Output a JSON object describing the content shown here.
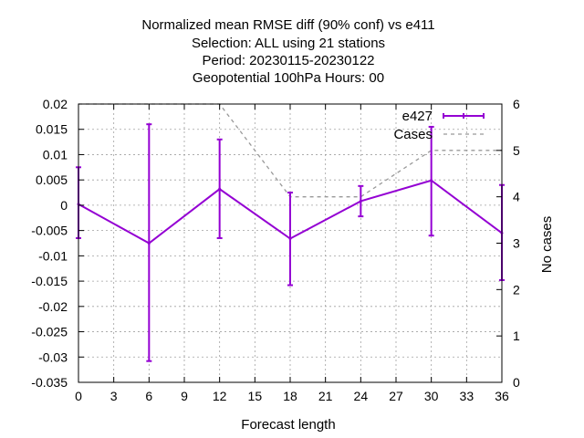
{
  "chart_data": {
    "type": "line",
    "title_lines": [
      "Normalized mean RMSE diff (90% conf) vs e411",
      "Selection: ALL using     21 stations",
      "Period: 20230115-20230122",
      "Geopotential 100hPa   Hours:  00"
    ],
    "xlabel": "Forecast length",
    "ylabel": "",
    "y2label": "No cases",
    "xlim": [
      0,
      36
    ],
    "ylim": [
      -0.035,
      0.02
    ],
    "y2lim": [
      0,
      6
    ],
    "x_ticks": [
      "0",
      "3",
      "6",
      "9",
      "12",
      "15",
      "18",
      "21",
      "24",
      "27",
      "30",
      "33",
      "36"
    ],
    "y_ticks": [
      "0.02",
      "0.015",
      "0.01",
      "0.005",
      "0",
      "-0.005",
      "-0.01",
      "-0.015",
      "-0.02",
      "-0.025",
      "-0.03",
      "-0.035"
    ],
    "y2_ticks": [
      "6",
      "5",
      "4",
      "3",
      "2",
      "1",
      "0"
    ],
    "grid": true,
    "legend_position": "top-right",
    "series": [
      {
        "name": "e427",
        "color": "#9400d3",
        "style": "line-with-errorbars",
        "axis": "left",
        "x": [
          0,
          6,
          12,
          18,
          24,
          30,
          36
        ],
        "y": [
          0.0002,
          -0.0075,
          0.0032,
          -0.0066,
          0.0008,
          0.0049,
          -0.0055
        ],
        "err_low": [
          -0.0065,
          -0.0308,
          -0.0065,
          -0.0158,
          -0.0022,
          -0.006,
          -0.0148
        ],
        "err_high": [
          0.0075,
          0.016,
          0.013,
          0.0025,
          0.0038,
          0.0155,
          0.004
        ]
      },
      {
        "name": "Cases",
        "color": "#999999",
        "style": "dashed-step",
        "axis": "right",
        "x": [
          0,
          6,
          12,
          18,
          24,
          30,
          36
        ],
        "y": [
          6,
          6,
          6,
          4,
          4,
          5,
          5
        ]
      }
    ]
  }
}
